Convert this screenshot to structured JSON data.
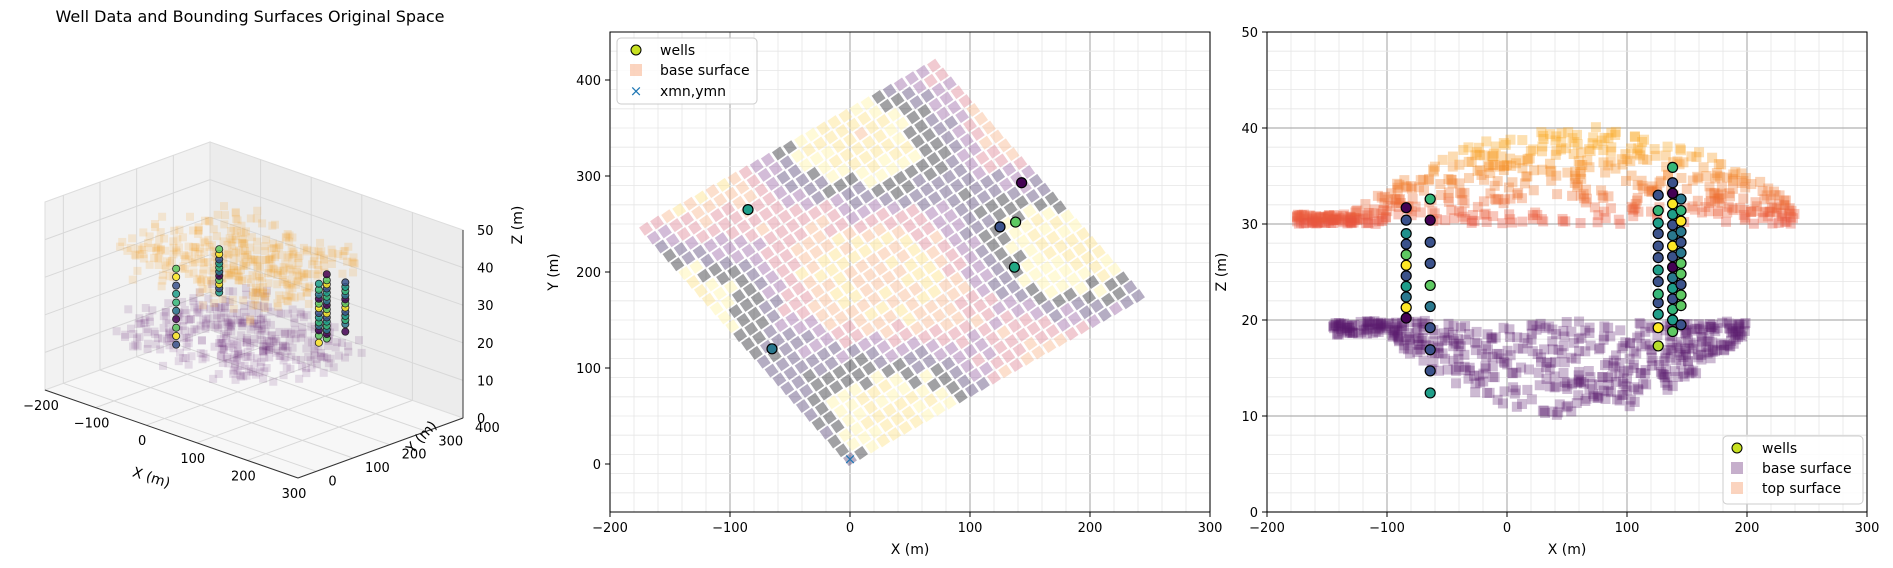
{
  "chart_data": [
    {
      "type": "scatter3d",
      "title": "Well Data and Bounding Surfaces Original Space",
      "xlabel": "X (m)",
      "ylabel": "Y (m)",
      "zlabel": "Z (m)",
      "xlim": [
        -200,
        300
      ],
      "ylim": [
        -50,
        400
      ],
      "zlim": [
        0,
        50
      ],
      "xticks": [
        "−200",
        "−100",
        "0",
        "100",
        "200",
        "300"
      ],
      "yticks": [
        "0",
        "100",
        "200",
        "300",
        "400"
      ],
      "zticks": [
        "0",
        "10",
        "20",
        "30",
        "40",
        "50"
      ],
      "grid": true,
      "series": [
        {
          "key": "base",
          "color": "#5b1a6e",
          "z_range": [
            10,
            20
          ]
        },
        {
          "key": "top",
          "color": "#f39a22",
          "z_range": [
            30,
            40
          ]
        },
        {
          "key": "wells",
          "color": "#3a9b86"
        }
      ]
    },
    {
      "type": "scatter",
      "xlabel": "X (m)",
      "ylabel": "Y (m)",
      "xlim": [
        -200,
        300
      ],
      "ylim": [
        -50,
        450
      ],
      "xticks": [
        "−200",
        "−100",
        "0",
        "100",
        "200",
        "300"
      ],
      "yticks": [
        "0",
        "100",
        "200",
        "300",
        "400"
      ],
      "grid": true,
      "legend_position": "top-left",
      "legend": [
        "wells",
        "base surface",
        "xmn,ymn"
      ],
      "grid_origin": {
        "x": 0,
        "y": 5
      },
      "grid_corners": [
        [
          0,
          5
        ],
        [
          240,
          175
        ],
        [
          70,
          415
        ],
        [
          -170,
          245
        ]
      ],
      "wells": [
        {
          "x": -85,
          "y": 265,
          "c": "#1f9e89"
        },
        {
          "x": -65,
          "y": 120,
          "c": "#2a788e"
        },
        {
          "x": 125,
          "y": 247,
          "c": "#3b528b"
        },
        {
          "x": 138,
          "y": 252,
          "c": "#5ec962"
        },
        {
          "x": 143,
          "y": 293,
          "c": "#440154"
        },
        {
          "x": 137,
          "y": 205,
          "c": "#22a884"
        }
      ]
    },
    {
      "type": "scatter",
      "xlabel": "X (m)",
      "ylabel": "Z (m)",
      "xlim": [
        -200,
        300
      ],
      "ylim": [
        0,
        50
      ],
      "xticks": [
        "−200",
        "−100",
        "0",
        "100",
        "200",
        "300"
      ],
      "yticks": [
        "0",
        "10",
        "20",
        "30",
        "40",
        "50"
      ],
      "grid": true,
      "legend_position": "bottom-right",
      "legend": [
        "wells",
        "base surface",
        "top surface"
      ],
      "well_columns": [
        {
          "x": -84,
          "z": [
            20.2,
            21.3,
            22.4,
            23.5,
            24.6,
            25.7,
            26.8,
            27.9,
            29.0,
            30.4,
            31.7
          ],
          "c": [
            "#440154",
            "#fde725",
            "#2a788e",
            "#1f9e89",
            "#3b528b",
            "#fde725",
            "#5ec962",
            "#3b528b",
            "#21918c",
            "#3b528b",
            "#440154"
          ]
        },
        {
          "x": -64,
          "z": [
            12.4,
            14.7,
            16.9,
            19.2,
            21.4,
            23.6,
            25.9,
            28.1,
            30.4,
            32.6
          ],
          "c": [
            "#1f9e89",
            "#3b528b",
            "#3b528b",
            "#3b528b",
            "#2a788e",
            "#5ec962",
            "#3b528b",
            "#3b528b",
            "#440154",
            "#35b779"
          ]
        },
        {
          "x": 126,
          "z": [
            17.3,
            19.2,
            20.6,
            21.8,
            22.7,
            24.0,
            25.2,
            26.5,
            27.7,
            29.0,
            30.1,
            31.4,
            33.0
          ],
          "c": [
            "#b5de2b",
            "#fde725",
            "#1f9e89",
            "#3b528b",
            "#35b779",
            "#3b528b",
            "#1f9e89",
            "#3b528b",
            "#3b528b",
            "#3b528b",
            "#1f9e89",
            "#35b779",
            "#3b528b"
          ]
        },
        {
          "x": 138,
          "z": [
            18.8,
            20.0,
            21.1,
            22.2,
            23.3,
            24.4,
            25.5,
            26.6,
            27.7,
            28.8,
            29.9,
            31.0,
            32.1,
            33.2,
            34.3,
            35.9
          ],
          "c": [
            "#5ec962",
            "#1f9e89",
            "#35b779",
            "#3b528b",
            "#1f9e89",
            "#2a788e",
            "#440154",
            "#3b528b",
            "#fde725",
            "#2a788e",
            "#3b528b",
            "#1f9e89",
            "#fde725",
            "#440154",
            "#3b528b",
            "#35b779"
          ]
        },
        {
          "x": 145,
          "z": [
            19.5,
            21.5,
            22.6,
            23.7,
            24.8,
            25.9,
            27.0,
            28.1,
            29.2,
            30.3,
            31.4,
            32.6
          ],
          "c": [
            "#3b528b",
            "#5ec962",
            "#5ec962",
            "#3b528b",
            "#5ec962",
            "#5ec962",
            "#2a788e",
            "#3b528b",
            "#2a788e",
            "#fde725",
            "#35b779",
            "#2a788e"
          ]
        }
      ],
      "base_surface": {
        "x_range": [
          -145,
          200
        ],
        "z_range": [
          10,
          20
        ],
        "color": "#5b1a6e"
      },
      "top_surface": {
        "x_range": [
          -175,
          240
        ],
        "z_range": [
          30,
          40
        ],
        "color_low": "#e8533f",
        "color_high": "#f9a51f"
      }
    }
  ]
}
